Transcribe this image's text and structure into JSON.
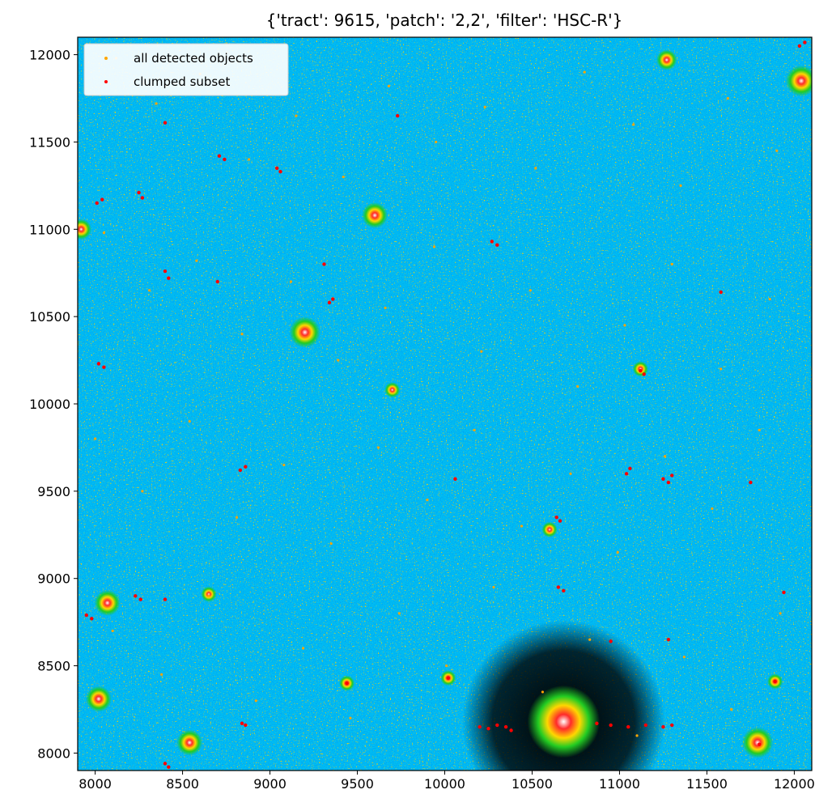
{
  "chart_data": {
    "type": "scatter",
    "title": "{'tract': 9615, 'patch': '2,2', 'filter': 'HSC-R'}",
    "xlabel": "",
    "ylabel": "",
    "xlim": [
      7900,
      12100
    ],
    "ylim": [
      7900,
      12100
    ],
    "x_ticks": [
      8000,
      8500,
      9000,
      9500,
      10000,
      10500,
      11000,
      11500,
      12000
    ],
    "y_ticks": [
      8000,
      8500,
      9000,
      9500,
      10000,
      10500,
      11000,
      11500,
      12000
    ],
    "x_tick_labels": [
      "8000",
      "8500",
      "9000",
      "9500",
      "10000",
      "10500",
      "11000",
      "11500",
      "12000"
    ],
    "y_tick_labels": [
      "8000",
      "8500",
      "9000",
      "9500",
      "10000",
      "10500",
      "11000",
      "11500",
      "12000"
    ],
    "grid": false,
    "legend_position": "top-left",
    "background": "image (HSC-R coadd, false-color)",
    "series": [
      {
        "name": "all detected objects",
        "color": "#ffa500",
        "marker_size_note": "tiny dots",
        "points": [
          [
            8120,
            11980
          ],
          [
            8350,
            11720
          ],
          [
            8600,
            11890
          ],
          [
            8880,
            11400
          ],
          [
            9150,
            11650
          ],
          [
            9420,
            11300
          ],
          [
            9680,
            11820
          ],
          [
            9950,
            11500
          ],
          [
            10230,
            11700
          ],
          [
            10520,
            11350
          ],
          [
            10800,
            11900
          ],
          [
            11080,
            11600
          ],
          [
            11350,
            11250
          ],
          [
            11620,
            11750
          ],
          [
            11900,
            11450
          ],
          [
            8050,
            10980
          ],
          [
            8310,
            10650
          ],
          [
            8580,
            10820
          ],
          [
            8840,
            10400
          ],
          [
            9120,
            10700
          ],
          [
            9390,
            10250
          ],
          [
            9660,
            10550
          ],
          [
            9940,
            10900
          ],
          [
            10210,
            10300
          ],
          [
            10490,
            10650
          ],
          [
            10760,
            10100
          ],
          [
            11030,
            10450
          ],
          [
            11300,
            10800
          ],
          [
            11580,
            10200
          ],
          [
            11860,
            10600
          ],
          [
            8000,
            9800
          ],
          [
            8270,
            9500
          ],
          [
            8540,
            9900
          ],
          [
            8810,
            9350
          ],
          [
            9080,
            9650
          ],
          [
            9350,
            9200
          ],
          [
            9620,
            9750
          ],
          [
            9900,
            9450
          ],
          [
            10170,
            9850
          ],
          [
            10440,
            9300
          ],
          [
            10720,
            9600
          ],
          [
            10990,
            9150
          ],
          [
            11260,
            9700
          ],
          [
            11530,
            9400
          ],
          [
            11800,
            9850
          ],
          [
            8100,
            8700
          ],
          [
            8380,
            8450
          ],
          [
            8650,
            8900
          ],
          [
            8920,
            8300
          ],
          [
            9190,
            8600
          ],
          [
            9460,
            8200
          ],
          [
            9740,
            8800
          ],
          [
            10010,
            8500
          ],
          [
            10280,
            8950
          ],
          [
            10560,
            8350
          ],
          [
            10830,
            8650
          ],
          [
            11100,
            8100
          ],
          [
            11370,
            8550
          ],
          [
            11640,
            8250
          ],
          [
            11920,
            8800
          ]
        ]
      },
      {
        "name": "clumped subset",
        "color": "#ff0000",
        "marker_size_note": "tiny dots",
        "points": [
          [
            8010,
            11150
          ],
          [
            8040,
            11170
          ],
          [
            8250,
            11210
          ],
          [
            8270,
            11180
          ],
          [
            8710,
            11420
          ],
          [
            8740,
            11400
          ],
          [
            9040,
            11350
          ],
          [
            9060,
            11330
          ],
          [
            8400,
            11610
          ],
          [
            9730,
            11650
          ],
          [
            8400,
            10760
          ],
          [
            8420,
            10720
          ],
          [
            8700,
            10700
          ],
          [
            9310,
            10800
          ],
          [
            9340,
            10580
          ],
          [
            9360,
            10600
          ],
          [
            10270,
            10930
          ],
          [
            10300,
            10910
          ],
          [
            11120,
            10190
          ],
          [
            11140,
            10170
          ],
          [
            11580,
            10640
          ],
          [
            8020,
            10230
          ],
          [
            8050,
            10210
          ],
          [
            8830,
            9620
          ],
          [
            8860,
            9640
          ],
          [
            10060,
            9570
          ],
          [
            11040,
            9600
          ],
          [
            11060,
            9630
          ],
          [
            11250,
            9570
          ],
          [
            11280,
            9550
          ],
          [
            11300,
            9590
          ],
          [
            11750,
            9550
          ],
          [
            10640,
            9350
          ],
          [
            10660,
            9330
          ],
          [
            10650,
            8950
          ],
          [
            10680,
            8930
          ],
          [
            8230,
            8900
          ],
          [
            8260,
            8880
          ],
          [
            7950,
            8790
          ],
          [
            7980,
            8770
          ],
          [
            8400,
            8880
          ],
          [
            8840,
            8170
          ],
          [
            8860,
            8160
          ],
          [
            10200,
            8150
          ],
          [
            10250,
            8140
          ],
          [
            10300,
            8160
          ],
          [
            10350,
            8150
          ],
          [
            10380,
            8130
          ],
          [
            10870,
            8170
          ],
          [
            10950,
            8160
          ],
          [
            11050,
            8150
          ],
          [
            11150,
            8160
          ],
          [
            11250,
            8150
          ],
          [
            11300,
            8160
          ],
          [
            10950,
            8640
          ],
          [
            11280,
            8650
          ],
          [
            9440,
            8400
          ],
          [
            10020,
            8430
          ],
          [
            11890,
            8410
          ],
          [
            11940,
            8920
          ],
          [
            8400,
            7940
          ],
          [
            8420,
            7920
          ],
          [
            12030,
            12050
          ],
          [
            12060,
            12070
          ],
          [
            11800,
            8050
          ]
        ]
      }
    ]
  }
}
